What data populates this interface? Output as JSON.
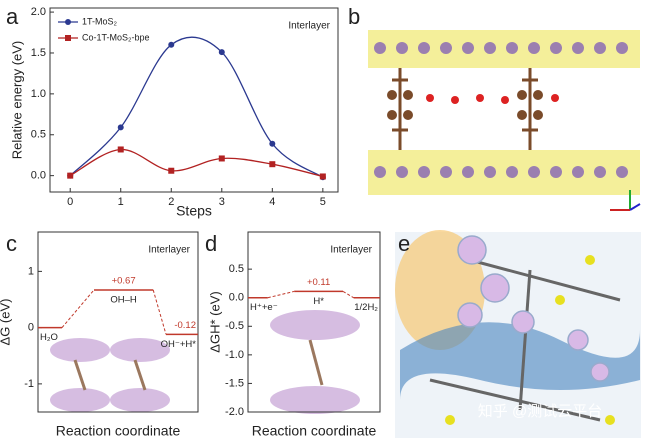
{
  "panel_labels": [
    "a",
    "b",
    "c",
    "d",
    "e"
  ],
  "watermark": "知乎 @测试云平台",
  "chart_data": [
    {
      "type": "line",
      "annotation": "Interlayer",
      "xlabel": "Steps",
      "ylabel": "Relative energy (eV)",
      "x": [
        0,
        1,
        2,
        3,
        4,
        5
      ],
      "series": [
        {
          "name": "1T-MoS₂",
          "color": "#2b3990",
          "values": [
            0,
            0.59,
            1.6,
            1.51,
            0.39,
            -0.02
          ]
        },
        {
          "name": "Co-1T-MoS₂-bpe",
          "color": "#b22222",
          "values": [
            0,
            0.32,
            0.06,
            0.21,
            0.14,
            -0.01
          ]
        }
      ],
      "xlim": [
        -0.4,
        5.3
      ],
      "xticks": [
        0,
        1,
        2,
        3,
        4,
        5
      ],
      "ylim": [
        -0.2,
        2.05
      ],
      "yticks": [
        {
          "value": 0,
          "label": "0.0"
        },
        {
          "value": 0.5,
          "label": "0.5"
        },
        {
          "value": 1,
          "label": "1.0"
        },
        {
          "value": 1.5,
          "label": "1.5"
        },
        {
          "value": 2,
          "label": "2.0"
        }
      ],
      "legend": "upper left",
      "smooth": true
    },
    {
      "type": "energy",
      "annotation": "Interlayer",
      "xlabel": "Reaction coordinate",
      "ylabel": "ΔG (eV)",
      "color": "#c0392b",
      "categories": [
        "H₂O",
        "OH–H",
        "OH⁻+H*"
      ],
      "values": [
        0,
        0.67,
        -0.12
      ],
      "value_labels": [
        null,
        "+0.67",
        "-0.12"
      ],
      "ylim": [
        -1.5,
        1.7
      ],
      "yticks": [
        -1,
        0,
        1
      ]
    },
    {
      "type": "energy",
      "annotation": "Interlayer",
      "xlabel": "Reaction coordinate",
      "ylabel": "ΔGH* (eV)",
      "color": "#c0392b",
      "categories": [
        "H⁺+e⁻",
        "H*",
        "1/2H₂"
      ],
      "values": [
        0,
        0.11,
        0
      ],
      "value_labels": [
        null,
        "+0.11",
        null
      ],
      "ylim": [
        -2.0,
        1.15
      ],
      "yticks": [
        {
          "value": -2,
          "label": "-2.0"
        },
        {
          "value": -1.5,
          "label": "-1.5"
        },
        {
          "value": -1,
          "label": "-1.0"
        },
        {
          "value": -0.5,
          "label": "-0.5"
        },
        {
          "value": 0,
          "label": "0.0"
        },
        {
          "value": 0.5,
          "label": "0.5"
        }
      ]
    }
  ]
}
